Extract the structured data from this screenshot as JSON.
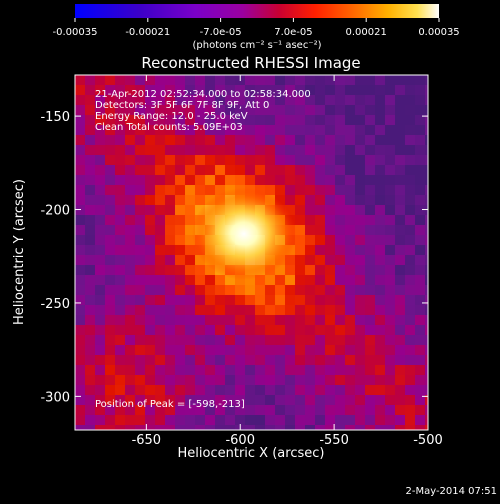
{
  "chart_data": {
    "type": "heatmap",
    "title": "Reconstructed RHESSI Image",
    "xlabel": "Heliocentric X (arcsec)",
    "ylabel": "Heliocentric Y (arcsec)",
    "xlim": [
      -688,
      -500
    ],
    "ylim": [
      -318,
      -128
    ],
    "x_ticks": [
      -650,
      -600,
      -550,
      -500
    ],
    "y_ticks": [
      -300,
      -250,
      -200,
      -150
    ],
    "colorbar": {
      "range": [
        -0.00035,
        0.00035
      ],
      "tick_values": [
        -0.00035,
        -0.00021,
        -7e-05,
        7e-05,
        0.00021,
        0.00035
      ],
      "tick_labels": [
        "-0.00035",
        "-0.00021",
        "-7.0e-05",
        "7.0e-05",
        "0.00021",
        "0.00035"
      ],
      "unit_label": "(photons cm⁻² s⁻¹ asec⁻²)"
    },
    "annotations": [
      "21-Apr-2012 02:52:34.000 to 02:58:34.000",
      "Detectors: 3F 5F 6F 7F 8F 9F, Att 0",
      "Energy Range: 12.0 - 25.0 keV",
      "Clean    Total counts: 5.09E+03"
    ],
    "peak_label": "Position of Peak = [-598,-213]",
    "peak_position": [
      -598,
      -213
    ],
    "timestamp": "2-May-2014 07:51"
  }
}
